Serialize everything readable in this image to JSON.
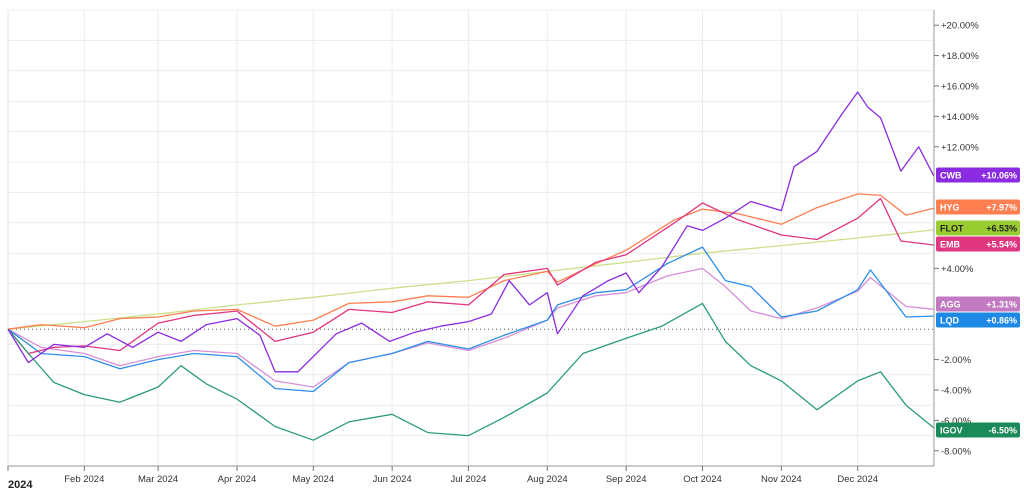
{
  "chart_data": {
    "type": "line",
    "title": "",
    "xlabel": "",
    "ylabel": "",
    "x_range": [
      "2024-01-02",
      "2024-12-31"
    ],
    "ylim": [
      -9,
      21
    ],
    "y_ticks": [
      {
        "v": 20,
        "label": "+20.00%"
      },
      {
        "v": 18,
        "label": "+18.00%"
      },
      {
        "v": 16,
        "label": "+16.00%"
      },
      {
        "v": 14,
        "label": "+14.00%"
      },
      {
        "v": 12,
        "label": "+12.00%"
      },
      {
        "v": 4,
        "label": "+4.00%"
      },
      {
        "v": -2,
        "label": "-2.00%"
      },
      {
        "v": -4,
        "label": "-4.00%"
      },
      {
        "v": -6,
        "label": "-6.00%"
      },
      {
        "v": -8,
        "label": "-8.00%"
      }
    ],
    "x_ticks": [
      {
        "date": "2024-02-01",
        "label": "Feb 2024"
      },
      {
        "date": "2024-03-01",
        "label": "Mar 2024"
      },
      {
        "date": "2024-04-01",
        "label": "Apr 2024"
      },
      {
        "date": "2024-05-01",
        "label": "May 2024"
      },
      {
        "date": "2024-06-01",
        "label": "Jun 2024"
      },
      {
        "date": "2024-07-01",
        "label": "Jul 2024"
      },
      {
        "date": "2024-08-01",
        "label": "Aug 2024"
      },
      {
        "date": "2024-09-01",
        "label": "Sep 2024"
      },
      {
        "date": "2024-10-01",
        "label": "Oct 2024"
      },
      {
        "date": "2024-11-01",
        "label": "Nov 2024"
      },
      {
        "date": "2024-12-01",
        "label": "Dec 2024"
      }
    ],
    "year_label": "2024",
    "zero_line": "dotted",
    "grid": true,
    "series": [
      {
        "name": "CWB",
        "badge_value": "+10.06%",
        "color": "#8a2be2",
        "badge_color": "#8a2be2",
        "points": [
          [
            "2024-01-02",
            0
          ],
          [
            "2024-01-10",
            -2.2
          ],
          [
            "2024-01-20",
            -1
          ],
          [
            "2024-02-01",
            -1.2
          ],
          [
            "2024-02-10",
            -0.3
          ],
          [
            "2024-02-20",
            -1.2
          ],
          [
            "2024-03-01",
            -0.2
          ],
          [
            "2024-03-10",
            -0.8
          ],
          [
            "2024-03-20",
            0.3
          ],
          [
            "2024-04-01",
            0.7
          ],
          [
            "2024-04-10",
            -0.4
          ],
          [
            "2024-04-16",
            -2.8
          ],
          [
            "2024-04-25",
            -2.8
          ],
          [
            "2024-05-01",
            -1.8
          ],
          [
            "2024-05-10",
            -0.3
          ],
          [
            "2024-05-20",
            0.4
          ],
          [
            "2024-05-31",
            -0.8
          ],
          [
            "2024-06-10",
            -0.2
          ],
          [
            "2024-06-20",
            0.2
          ],
          [
            "2024-07-01",
            0.5
          ],
          [
            "2024-07-10",
            1.0
          ],
          [
            "2024-07-17",
            3.2
          ],
          [
            "2024-07-25",
            1.6
          ],
          [
            "2024-08-01",
            2.4
          ],
          [
            "2024-08-05",
            -0.3
          ],
          [
            "2024-08-15",
            2.2
          ],
          [
            "2024-08-25",
            3.2
          ],
          [
            "2024-09-01",
            3.7
          ],
          [
            "2024-09-06",
            2.4
          ],
          [
            "2024-09-15",
            4.1
          ],
          [
            "2024-09-25",
            6.8
          ],
          [
            "2024-10-01",
            6.5
          ],
          [
            "2024-10-10",
            7.3
          ],
          [
            "2024-10-20",
            8.4
          ],
          [
            "2024-11-01",
            7.8
          ],
          [
            "2024-11-06",
            10.7
          ],
          [
            "2024-11-15",
            11.7
          ],
          [
            "2024-11-25",
            14.2
          ],
          [
            "2024-12-01",
            15.6
          ],
          [
            "2024-12-05",
            14.6
          ],
          [
            "2024-12-10",
            13.9
          ],
          [
            "2024-12-18",
            10.4
          ],
          [
            "2024-12-25",
            12.0
          ],
          [
            "2024-12-31",
            10.06
          ]
        ]
      },
      {
        "name": "HYG",
        "badge_value": "+7.97%",
        "color": "#ff7f50",
        "badge_color": "#ff7f50",
        "points": [
          [
            "2024-01-02",
            0
          ],
          [
            "2024-01-15",
            0.3
          ],
          [
            "2024-02-01",
            0.1
          ],
          [
            "2024-02-15",
            0.7
          ],
          [
            "2024-03-01",
            0.8
          ],
          [
            "2024-03-15",
            1.2
          ],
          [
            "2024-04-01",
            1.3
          ],
          [
            "2024-04-16",
            0.2
          ],
          [
            "2024-05-01",
            0.6
          ],
          [
            "2024-05-15",
            1.7
          ],
          [
            "2024-06-01",
            1.8
          ],
          [
            "2024-06-15",
            2.2
          ],
          [
            "2024-07-01",
            2.1
          ],
          [
            "2024-07-15",
            3.2
          ],
          [
            "2024-08-01",
            3.8
          ],
          [
            "2024-08-05",
            3.1
          ],
          [
            "2024-08-20",
            4.3
          ],
          [
            "2024-09-01",
            5.2
          ],
          [
            "2024-09-20",
            7.2
          ],
          [
            "2024-10-01",
            7.9
          ],
          [
            "2024-10-15",
            7.6
          ],
          [
            "2024-11-01",
            6.9
          ],
          [
            "2024-11-15",
            8.0
          ],
          [
            "2024-12-01",
            8.9
          ],
          [
            "2024-12-10",
            8.8
          ],
          [
            "2024-12-20",
            7.5
          ],
          [
            "2024-12-31",
            7.97
          ]
        ]
      },
      {
        "name": "FLOT",
        "badge_value": "+6.53%",
        "color": "#cbe08a",
        "badge_color": "#9acd32",
        "points": [
          [
            "2024-01-02",
            0
          ],
          [
            "2024-02-01",
            0.5
          ],
          [
            "2024-03-01",
            1.0
          ],
          [
            "2024-04-01",
            1.6
          ],
          [
            "2024-05-01",
            2.1
          ],
          [
            "2024-06-01",
            2.7
          ],
          [
            "2024-07-01",
            3.2
          ],
          [
            "2024-08-01",
            3.8
          ],
          [
            "2024-09-01",
            4.4
          ],
          [
            "2024-10-01",
            5.0
          ],
          [
            "2024-11-01",
            5.5
          ],
          [
            "2024-12-01",
            6.0
          ],
          [
            "2024-12-31",
            6.53
          ]
        ]
      },
      {
        "name": "EMB",
        "badge_value": "+5.54%",
        "color": "#e0357f",
        "badge_color": "#e0357f",
        "points": [
          [
            "2024-01-02",
            0
          ],
          [
            "2024-01-10",
            -1.6
          ],
          [
            "2024-01-20",
            -1.2
          ],
          [
            "2024-02-01",
            -1.1
          ],
          [
            "2024-02-15",
            -1.4
          ],
          [
            "2024-03-01",
            0.4
          ],
          [
            "2024-03-15",
            0.9
          ],
          [
            "2024-04-01",
            1.2
          ],
          [
            "2024-04-16",
            -0.8
          ],
          [
            "2024-05-01",
            -0.2
          ],
          [
            "2024-05-15",
            1.3
          ],
          [
            "2024-06-01",
            1.1
          ],
          [
            "2024-06-15",
            1.8
          ],
          [
            "2024-07-01",
            1.6
          ],
          [
            "2024-07-15",
            3.6
          ],
          [
            "2024-08-01",
            4.0
          ],
          [
            "2024-08-05",
            2.9
          ],
          [
            "2024-08-20",
            4.4
          ],
          [
            "2024-09-01",
            4.9
          ],
          [
            "2024-09-20",
            7.0
          ],
          [
            "2024-10-01",
            8.3
          ],
          [
            "2024-10-15",
            7.2
          ],
          [
            "2024-11-01",
            6.2
          ],
          [
            "2024-11-15",
            5.9
          ],
          [
            "2024-12-01",
            7.3
          ],
          [
            "2024-12-10",
            8.6
          ],
          [
            "2024-12-18",
            5.8
          ],
          [
            "2024-12-31",
            5.54
          ]
        ]
      },
      {
        "name": "AGG",
        "badge_value": "+1.31%",
        "color": "#d68fd6",
        "badge_color": "#c27bc2",
        "points": [
          [
            "2024-01-02",
            0
          ],
          [
            "2024-01-15",
            -1.2
          ],
          [
            "2024-02-01",
            -1.6
          ],
          [
            "2024-02-15",
            -2.4
          ],
          [
            "2024-03-01",
            -1.8
          ],
          [
            "2024-03-15",
            -1.4
          ],
          [
            "2024-04-01",
            -1.6
          ],
          [
            "2024-04-16",
            -3.4
          ],
          [
            "2024-05-01",
            -3.8
          ],
          [
            "2024-05-15",
            -2.2
          ],
          [
            "2024-06-01",
            -1.6
          ],
          [
            "2024-06-15",
            -0.9
          ],
          [
            "2024-07-01",
            -1.4
          ],
          [
            "2024-07-15",
            -0.6
          ],
          [
            "2024-08-01",
            0.6
          ],
          [
            "2024-08-05",
            1.4
          ],
          [
            "2024-08-20",
            2.2
          ],
          [
            "2024-09-01",
            2.4
          ],
          [
            "2024-09-17",
            3.5
          ],
          [
            "2024-10-01",
            4.0
          ],
          [
            "2024-10-10",
            2.8
          ],
          [
            "2024-10-20",
            1.2
          ],
          [
            "2024-11-01",
            0.7
          ],
          [
            "2024-11-15",
            1.4
          ],
          [
            "2024-12-01",
            2.5
          ],
          [
            "2024-12-06",
            3.4
          ],
          [
            "2024-12-20",
            1.5
          ],
          [
            "2024-12-31",
            1.31
          ]
        ]
      },
      {
        "name": "LQD",
        "badge_value": "+0.86%",
        "color": "#2e8fe8",
        "badge_color": "#1e88e5",
        "points": [
          [
            "2024-01-02",
            0
          ],
          [
            "2024-01-15",
            -1.6
          ],
          [
            "2024-02-01",
            -1.8
          ],
          [
            "2024-02-15",
            -2.6
          ],
          [
            "2024-03-01",
            -2.0
          ],
          [
            "2024-03-15",
            -1.6
          ],
          [
            "2024-04-01",
            -1.8
          ],
          [
            "2024-04-16",
            -3.9
          ],
          [
            "2024-05-01",
            -4.1
          ],
          [
            "2024-05-15",
            -2.2
          ],
          [
            "2024-06-01",
            -1.6
          ],
          [
            "2024-06-15",
            -0.8
          ],
          [
            "2024-07-01",
            -1.3
          ],
          [
            "2024-07-15",
            -0.4
          ],
          [
            "2024-08-01",
            0.6
          ],
          [
            "2024-08-05",
            1.6
          ],
          [
            "2024-08-20",
            2.4
          ],
          [
            "2024-09-01",
            2.6
          ],
          [
            "2024-09-17",
            4.3
          ],
          [
            "2024-10-01",
            5.4
          ],
          [
            "2024-10-10",
            3.2
          ],
          [
            "2024-10-20",
            2.8
          ],
          [
            "2024-11-01",
            0.8
          ],
          [
            "2024-11-15",
            1.2
          ],
          [
            "2024-12-01",
            2.6
          ],
          [
            "2024-12-06",
            3.9
          ],
          [
            "2024-12-20",
            0.8
          ],
          [
            "2024-12-31",
            0.86
          ]
        ]
      },
      {
        "name": "IGOV",
        "badge_value": "-6.50%",
        "color": "#2a9d6f",
        "badge_color": "#1b8a5a",
        "points": [
          [
            "2024-01-02",
            0
          ],
          [
            "2024-01-10",
            -1.6
          ],
          [
            "2024-01-20",
            -3.5
          ],
          [
            "2024-02-01",
            -4.3
          ],
          [
            "2024-02-15",
            -4.8
          ],
          [
            "2024-03-01",
            -3.8
          ],
          [
            "2024-03-10",
            -2.4
          ],
          [
            "2024-03-20",
            -3.6
          ],
          [
            "2024-04-01",
            -4.6
          ],
          [
            "2024-04-16",
            -6.4
          ],
          [
            "2024-05-01",
            -7.3
          ],
          [
            "2024-05-15",
            -6.1
          ],
          [
            "2024-06-01",
            -5.6
          ],
          [
            "2024-06-15",
            -6.8
          ],
          [
            "2024-07-01",
            -7.0
          ],
          [
            "2024-07-15",
            -5.8
          ],
          [
            "2024-08-01",
            -4.2
          ],
          [
            "2024-08-15",
            -1.6
          ],
          [
            "2024-09-01",
            -0.6
          ],
          [
            "2024-09-15",
            0.2
          ],
          [
            "2024-10-01",
            1.7
          ],
          [
            "2024-10-10",
            -0.8
          ],
          [
            "2024-10-20",
            -2.4
          ],
          [
            "2024-11-01",
            -3.4
          ],
          [
            "2024-11-15",
            -5.3
          ],
          [
            "2024-12-01",
            -3.4
          ],
          [
            "2024-12-10",
            -2.8
          ],
          [
            "2024-12-20",
            -5.0
          ],
          [
            "2024-12-31",
            -6.5
          ]
        ]
      }
    ]
  }
}
